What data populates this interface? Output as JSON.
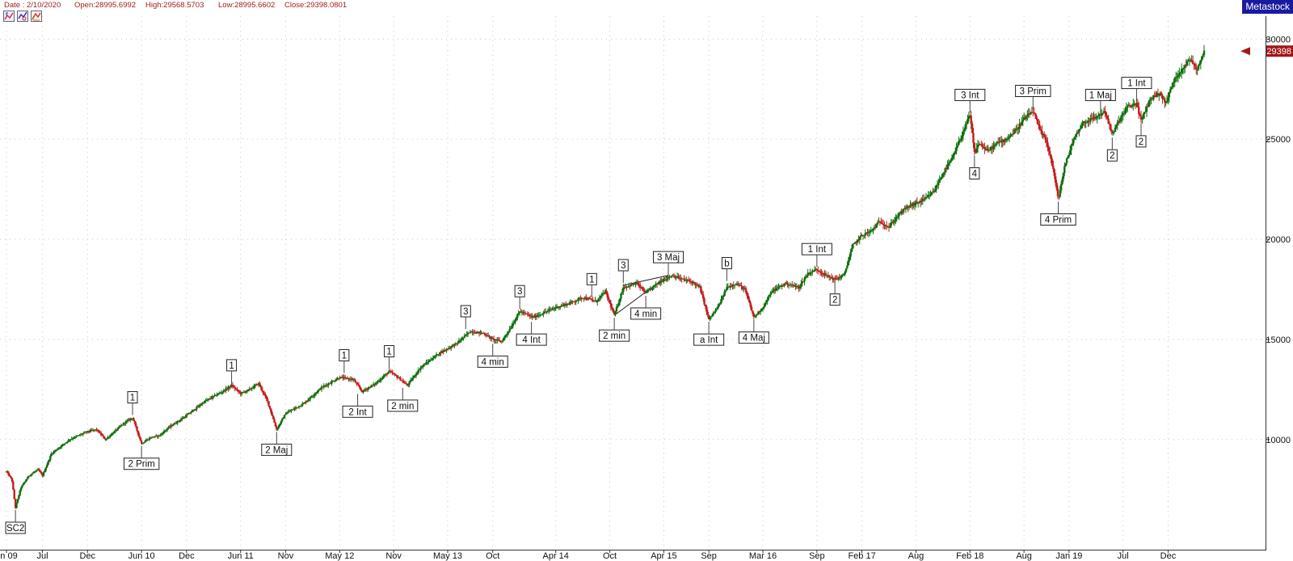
{
  "header": {
    "date": "Date : 2/10/2020",
    "open": "Open:28995.6992",
    "high": "High:29568.5703",
    "low": "Low:28995.6602",
    "close": "Close:29398.0801"
  },
  "toolbar": {
    "icons": [
      "chart-icon-1",
      "chart-icon-2",
      "chart-icon-3"
    ]
  },
  "brand": "Metastock",
  "colors": {
    "up": "#0f6f0f",
    "down": "#c41e1e",
    "grid": "#c8c8c8",
    "last_price_marker": "#a01818",
    "brand_bg": "#1a1aa0"
  },
  "chart_data": {
    "type": "candlestick",
    "title": "",
    "xlabel": "",
    "ylabel": "",
    "ylim": [
      4500,
      30800
    ],
    "grid": true,
    "y_ticks": [
      10000,
      15000,
      20000,
      25000,
      30000
    ],
    "y_tick_labels": [
      "10000",
      "15000",
      "20000",
      "25000",
      "30000"
    ],
    "last_price_label": "29398",
    "last_price": 29398.08,
    "x_ticks": [
      {
        "t": 0.0,
        "label": "n 09"
      },
      {
        "t": 4.0,
        "label": "Jul"
      },
      {
        "t": 9.0,
        "label": "Dec"
      },
      {
        "t": 15.0,
        "label": "Jun 10"
      },
      {
        "t": 20.0,
        "label": "Dec"
      },
      {
        "t": 26.0,
        "label": "Jun 11"
      },
      {
        "t": 31.0,
        "label": "Nov"
      },
      {
        "t": 37.0,
        "label": "May 12"
      },
      {
        "t": 43.0,
        "label": "Nov"
      },
      {
        "t": 49.0,
        "label": "May 13"
      },
      {
        "t": 54.0,
        "label": "Oct"
      },
      {
        "t": 61.0,
        "label": "Apr 14"
      },
      {
        "t": 67.0,
        "label": "Oct"
      },
      {
        "t": 73.0,
        "label": "Apr 15"
      },
      {
        "t": 78.0,
        "label": "Sep"
      },
      {
        "t": 84.0,
        "label": "Mar 16"
      },
      {
        "t": 90.0,
        "label": "Sep"
      },
      {
        "t": 95.0,
        "label": "Feb 17"
      },
      {
        "t": 101.0,
        "label": "Aug"
      },
      {
        "t": 107.0,
        "label": "Feb 18"
      },
      {
        "t": 113.0,
        "label": "Aug"
      },
      {
        "t": 118.0,
        "label": "Jan 19"
      },
      {
        "t": 124.0,
        "label": "Jul"
      },
      {
        "t": 129.0,
        "label": "Dec"
      }
    ],
    "price_path": [
      [
        0.0,
        8400
      ],
      [
        0.6,
        8000
      ],
      [
        1.0,
        6600
      ],
      [
        1.6,
        7600
      ],
      [
        2.5,
        8200
      ],
      [
        3.5,
        8500
      ],
      [
        4.0,
        8200
      ],
      [
        5.0,
        9300
      ],
      [
        7.0,
        10000
      ],
      [
        9.0,
        10400
      ],
      [
        10.0,
        10500
      ],
      [
        11.0,
        10000
      ],
      [
        13.0,
        10800
      ],
      [
        14.0,
        11100
      ],
      [
        15.0,
        9800
      ],
      [
        16.0,
        10100
      ],
      [
        17.0,
        10200
      ],
      [
        18.0,
        10600
      ],
      [
        20.0,
        11200
      ],
      [
        22.0,
        11900
      ],
      [
        24.0,
        12400
      ],
      [
        25.0,
        12700
      ],
      [
        26.0,
        12300
      ],
      [
        27.0,
        12500
      ],
      [
        28.0,
        12800
      ],
      [
        29.0,
        11900
      ],
      [
        30.0,
        10500
      ],
      [
        31.0,
        11300
      ],
      [
        33.0,
        11800
      ],
      [
        35.0,
        12600
      ],
      [
        37.0,
        13100
      ],
      [
        38.5,
        13000
      ],
      [
        39.5,
        12400
      ],
      [
        41.0,
        12800
      ],
      [
        42.5,
        13400
      ],
      [
        43.5,
        13100
      ],
      [
        44.5,
        12700
      ],
      [
        46.0,
        13600
      ],
      [
        48.0,
        14300
      ],
      [
        50.0,
        14800
      ],
      [
        51.5,
        15400
      ],
      [
        53.0,
        15300
      ],
      [
        54.0,
        15000
      ],
      [
        55.0,
        14900
      ],
      [
        56.0,
        15600
      ],
      [
        57.0,
        16400
      ],
      [
        58.5,
        16100
      ],
      [
        60.0,
        16400
      ],
      [
        61.0,
        16600
      ],
      [
        62.5,
        16800
      ],
      [
        64.0,
        17100
      ],
      [
        65.5,
        16900
      ],
      [
        66.5,
        17400
      ],
      [
        67.5,
        16200
      ],
      [
        68.5,
        17600
      ],
      [
        70.0,
        17800
      ],
      [
        71.0,
        17300
      ],
      [
        72.0,
        17700
      ],
      [
        73.0,
        18000
      ],
      [
        74.0,
        18200
      ],
      [
        75.0,
        18000
      ],
      [
        76.0,
        17900
      ],
      [
        77.0,
        17600
      ],
      [
        78.0,
        16000
      ],
      [
        79.0,
        16600
      ],
      [
        80.0,
        17600
      ],
      [
        81.0,
        17800
      ],
      [
        82.0,
        17500
      ],
      [
        83.0,
        16100
      ],
      [
        84.0,
        16600
      ],
      [
        85.0,
        17400
      ],
      [
        86.5,
        17800
      ],
      [
        88.0,
        17600
      ],
      [
        89.0,
        18300
      ],
      [
        90.0,
        18500
      ],
      [
        91.0,
        18200
      ],
      [
        92.0,
        18000
      ],
      [
        93.0,
        18200
      ],
      [
        94.0,
        19700
      ],
      [
        95.0,
        20200
      ],
      [
        96.0,
        20400
      ],
      [
        97.0,
        20900
      ],
      [
        98.0,
        20600
      ],
      [
        99.0,
        21200
      ],
      [
        100.0,
        21600
      ],
      [
        101.0,
        21800
      ],
      [
        102.0,
        22000
      ],
      [
        103.0,
        22400
      ],
      [
        104.0,
        23300
      ],
      [
        105.0,
        24000
      ],
      [
        106.0,
        25100
      ],
      [
        107.0,
        26200
      ],
      [
        107.5,
        24300
      ],
      [
        108.0,
        24800
      ],
      [
        109.0,
        24400
      ],
      [
        110.0,
        24800
      ],
      [
        111.0,
        25000
      ],
      [
        112.0,
        25400
      ],
      [
        113.0,
        26000
      ],
      [
        114.0,
        26400
      ],
      [
        114.8,
        25400
      ],
      [
        115.5,
        24900
      ],
      [
        116.2,
        23600
      ],
      [
        116.8,
        22000
      ],
      [
        117.5,
        23600
      ],
      [
        118.5,
        25000
      ],
      [
        119.5,
        25800
      ],
      [
        121.0,
        26100
      ],
      [
        122.0,
        26400
      ],
      [
        122.8,
        25200
      ],
      [
        123.5,
        25900
      ],
      [
        124.5,
        26600
      ],
      [
        125.5,
        26800
      ],
      [
        126.0,
        25900
      ],
      [
        127.0,
        27000
      ],
      [
        128.0,
        27300
      ],
      [
        128.8,
        26800
      ],
      [
        129.5,
        27800
      ],
      [
        130.5,
        28500
      ],
      [
        131.5,
        29000
      ],
      [
        132.2,
        28500
      ],
      [
        133.0,
        29400
      ]
    ],
    "wave_labels": [
      {
        "text": "SC2",
        "t": 1.0,
        "price": 6600,
        "pos": "below"
      },
      {
        "text": "1",
        "t": 14.0,
        "price": 11100,
        "pos": "above"
      },
      {
        "text": "2 Prim",
        "t": 15.0,
        "price": 9800,
        "pos": "below"
      },
      {
        "text": "1",
        "t": 25.0,
        "price": 12700,
        "pos": "above"
      },
      {
        "text": "2 Maj",
        "t": 30.0,
        "price": 10500,
        "pos": "below"
      },
      {
        "text": "1",
        "t": 37.5,
        "price": 13200,
        "pos": "above"
      },
      {
        "text": "2 Int",
        "t": 39.0,
        "price": 12400,
        "pos": "below"
      },
      {
        "text": "1",
        "t": 42.5,
        "price": 13400,
        "pos": "above"
      },
      {
        "text": "2 min",
        "t": 44.0,
        "price": 12700,
        "pos": "below"
      },
      {
        "text": "3",
        "t": 51.0,
        "price": 15400,
        "pos": "above"
      },
      {
        "text": "4 min",
        "t": 54.0,
        "price": 14900,
        "pos": "below"
      },
      {
        "text": "3",
        "t": 57.0,
        "price": 16400,
        "pos": "above"
      },
      {
        "text": "4 Int",
        "t": 58.3,
        "price": 16000,
        "pos": "below"
      },
      {
        "text": "1",
        "t": 65.0,
        "price": 17000,
        "pos": "above"
      },
      {
        "text": "2 min",
        "t": 67.5,
        "price": 16200,
        "pos": "below"
      },
      {
        "text": "3",
        "t": 68.5,
        "price": 17700,
        "pos": "above"
      },
      {
        "text": "4 min",
        "t": 71.0,
        "price": 17300,
        "pos": "below"
      },
      {
        "text": "3 Maj",
        "t": 73.5,
        "price": 18100,
        "pos": "above"
      },
      {
        "text": "a Int",
        "t": 78.0,
        "price": 16000,
        "pos": "below"
      },
      {
        "text": "b",
        "t": 80.0,
        "price": 17800,
        "pos": "above"
      },
      {
        "text": "4 Maj",
        "t": 83.0,
        "price": 16100,
        "pos": "below"
      },
      {
        "text": "1 Int",
        "t": 90.0,
        "price": 18500,
        "pos": "above"
      },
      {
        "text": "2",
        "t": 92.0,
        "price": 18000,
        "pos": "below"
      },
      {
        "text": "3 Int",
        "t": 107.0,
        "price": 26200,
        "pos": "above"
      },
      {
        "text": "4",
        "t": 107.5,
        "price": 24300,
        "pos": "below"
      },
      {
        "text": "3 Prim",
        "t": 114.0,
        "price": 26400,
        "pos": "above"
      },
      {
        "text": "4 Prim",
        "t": 116.8,
        "price": 22000,
        "pos": "below"
      },
      {
        "text": "1 Maj",
        "t": 121.5,
        "price": 26200,
        "pos": "above"
      },
      {
        "text": "2",
        "t": 122.8,
        "price": 25200,
        "pos": "below"
      },
      {
        "text": "1 Int",
        "t": 125.5,
        "price": 26800,
        "pos": "above"
      },
      {
        "text": "2",
        "t": 126.0,
        "price": 25900,
        "pos": "below"
      }
    ],
    "trend_lines": [
      {
        "from": [
          67.5,
          16200
        ],
        "to": [
          73.5,
          18200
        ]
      },
      {
        "from": [
          68.5,
          17700
        ],
        "to": [
          73.5,
          18200
        ]
      }
    ]
  }
}
